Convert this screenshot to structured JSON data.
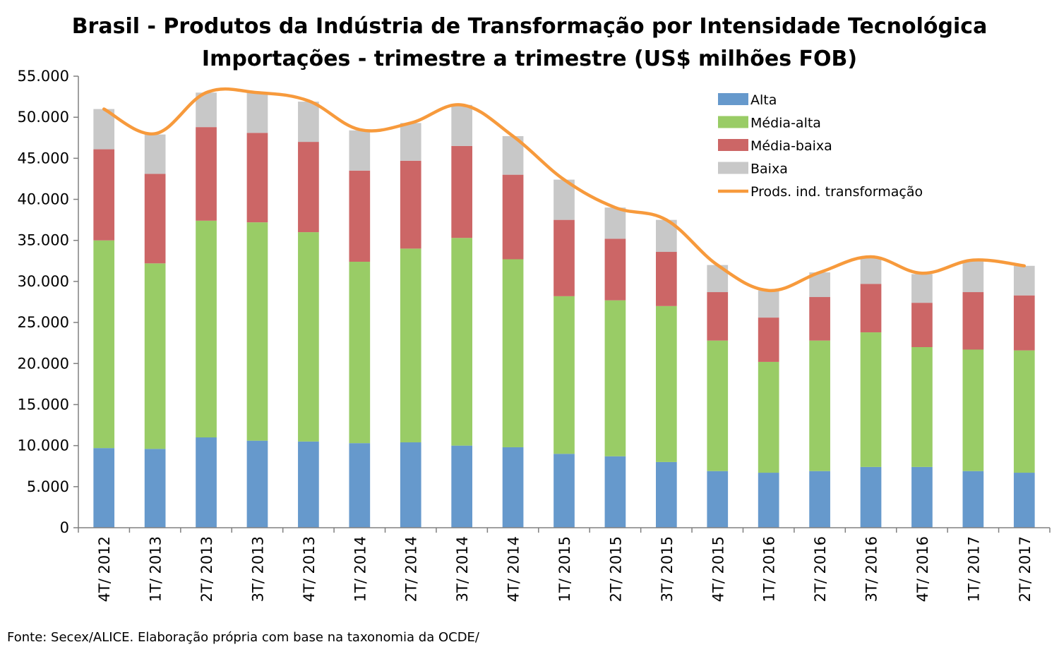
{
  "chart_data": {
    "type": "bar",
    "stacked": true,
    "title": "Brasil - Produtos da Indústria de Transformação por Intensidade Tecnológica",
    "subtitle": "Importações - trimestre a trimestre (US$ milhões FOB)",
    "categories": [
      "4T/ 2012",
      "1T/ 2013",
      "2T/ 2013",
      "3T/ 2013",
      "4T/ 2013",
      "1T/ 2014",
      "2T/ 2014",
      "3T/ 2014",
      "4T/ 2014",
      "1T/ 2015",
      "2T/ 2015",
      "3T/ 2015",
      "4T/ 2015",
      "1T/ 2016",
      "2T/ 2016",
      "3T/ 2016",
      "4T/ 2016",
      "1T/ 2017",
      "2T/ 2017"
    ],
    "series": [
      {
        "name": "Alta",
        "color": "#6699CC",
        "values": [
          9700,
          9600,
          11000,
          10600,
          10500,
          10300,
          10400,
          10000,
          9800,
          9000,
          8700,
          8000,
          6900,
          6700,
          6900,
          7400,
          7400,
          6900,
          6700
        ]
      },
      {
        "name": "Média-alta",
        "color": "#99CC66",
        "values": [
          25300,
          22600,
          26400,
          26600,
          25500,
          22100,
          23600,
          25300,
          22900,
          19200,
          19000,
          19000,
          15900,
          13500,
          15900,
          16400,
          14600,
          14800,
          14900
        ]
      },
      {
        "name": "Média-baixa",
        "color": "#CC6666",
        "values": [
          11100,
          10900,
          11400,
          10900,
          11000,
          11100,
          10700,
          11200,
          10300,
          9300,
          7500,
          6600,
          5900,
          5400,
          5300,
          5900,
          5400,
          7000,
          6700
        ]
      },
      {
        "name": "Baixa",
        "color": "#C8C8C8",
        "values": [
          4900,
          4800,
          4200,
          4900,
          4900,
          4900,
          4600,
          5000,
          4700,
          4900,
          3800,
          3900,
          3300,
          3300,
          3000,
          3300,
          3500,
          3800,
          3600
        ]
      }
    ],
    "line": {
      "name": "Prods. ind. transformação",
      "color": "#F79A3C",
      "values": [
        51000,
        48000,
        53000,
        53000,
        52000,
        48500,
        49300,
        51500,
        47700,
        42400,
        39000,
        37500,
        32000,
        28900,
        31100,
        33000,
        31000,
        32600,
        31900
      ]
    },
    "yticks": [
      "0",
      "5.000",
      "10.000",
      "15.000",
      "20.000",
      "25.000",
      "30.000",
      "35.000",
      "40.000",
      "45.000",
      "50.000",
      "55.000"
    ],
    "ylim": [
      0,
      55000
    ],
    "legend_position": "top-right",
    "grid": false
  },
  "source": "Fonte: Secex/ALICE. Elaboração própria com base na taxonomia da OCDE/"
}
